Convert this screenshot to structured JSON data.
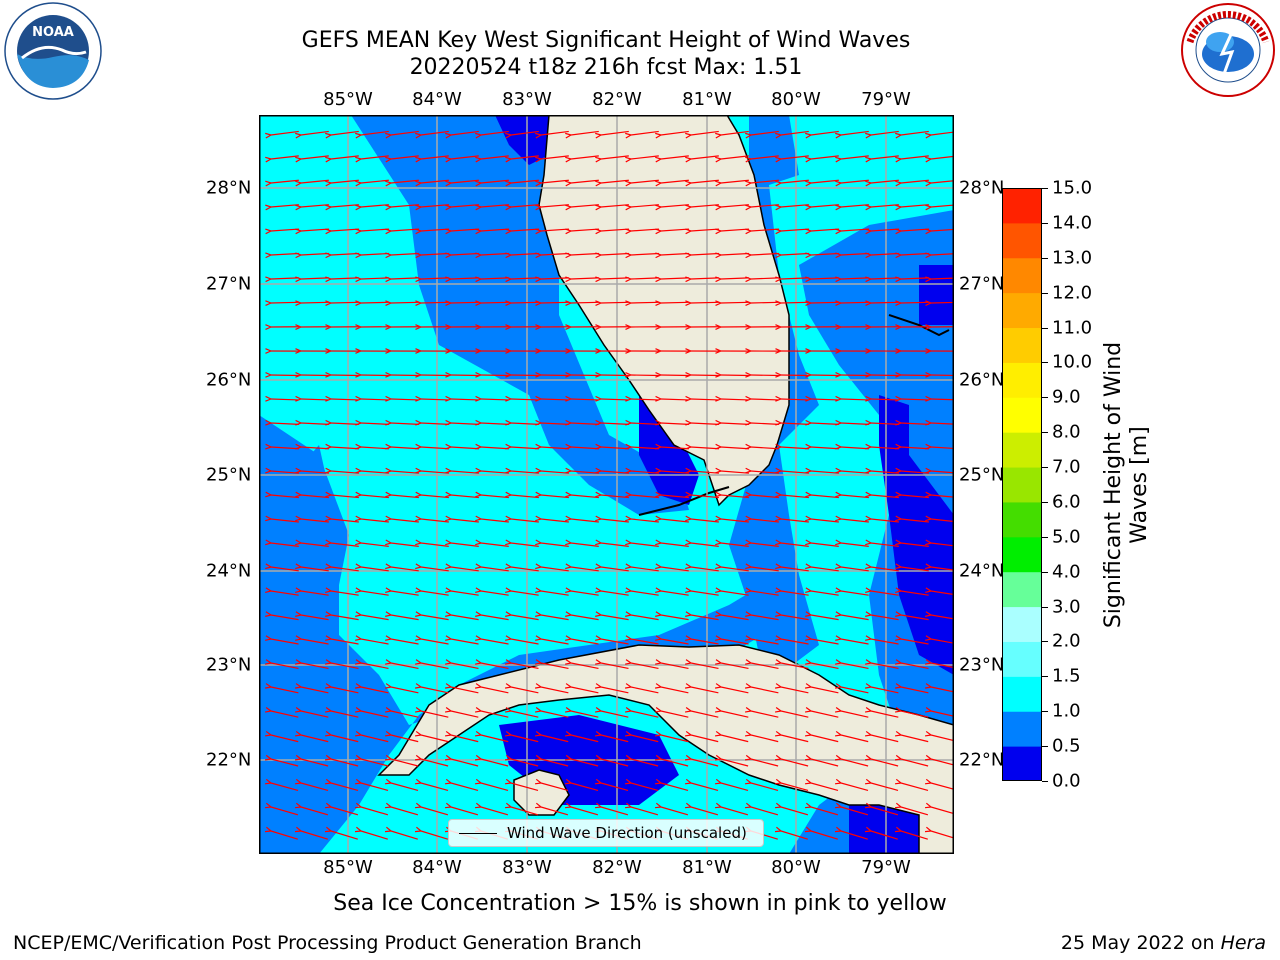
{
  "title": {
    "line1": "GEFS MEAN Key West Significant Height of Wind Waves",
    "line2": "20220524 t18z 216h fcst   Max: 1.51"
  },
  "axes": {
    "lon_labels": [
      "85°W",
      "84°W",
      "83°W",
      "82°W",
      "81°W",
      "80°W",
      "79°W"
    ],
    "lat_labels": [
      "28°N",
      "27°N",
      "26°N",
      "25°N",
      "24°N",
      "23°N",
      "22°N"
    ]
  },
  "colorbar": {
    "title": "Significant Height of Wind Waves [m]",
    "ticks": [
      "15.0",
      "14.0",
      "13.0",
      "12.0",
      "11.0",
      "10.0",
      "9.0",
      "8.0",
      "7.0",
      "6.0",
      "5.0",
      "4.0",
      "3.0",
      "2.0",
      "1.5",
      "1.0",
      "0.5",
      "0.0"
    ],
    "levels": [
      0.0,
      0.5,
      1.0,
      1.5,
      2.0,
      3.0,
      4.0,
      5.0,
      6.0,
      7.0,
      8.0,
      9.0,
      10.0,
      11.0,
      12.0,
      13.0,
      14.0,
      15.0
    ],
    "colors": [
      "#0000ee",
      "#0080ff",
      "#00ffff",
      "#66ffff",
      "#aaffff",
      "#66ff99",
      "#00ee00",
      "#44dd00",
      "#99e600",
      "#ccee00",
      "#ffff00",
      "#ffee00",
      "#ffcc00",
      "#ffaa00",
      "#ff8800",
      "#ff5500",
      "#ff2200"
    ]
  },
  "legend": {
    "label": "Wind Wave Direction (unscaled)"
  },
  "notes": {
    "sea_ice": "Sea Ice Concentration > 15% is shown in pink to yellow"
  },
  "footer": {
    "left": "NCEP/EMC/Verification Post Processing Product Generation Branch",
    "date": "25 May 2022 on ",
    "host": "Hera"
  },
  "map_colors": {
    "land": "#eeecdc",
    "dark_blue": "#0000ee",
    "mid_blue": "#0080ff",
    "cyan": "#00ffff",
    "arrow": "#ff0000"
  }
}
